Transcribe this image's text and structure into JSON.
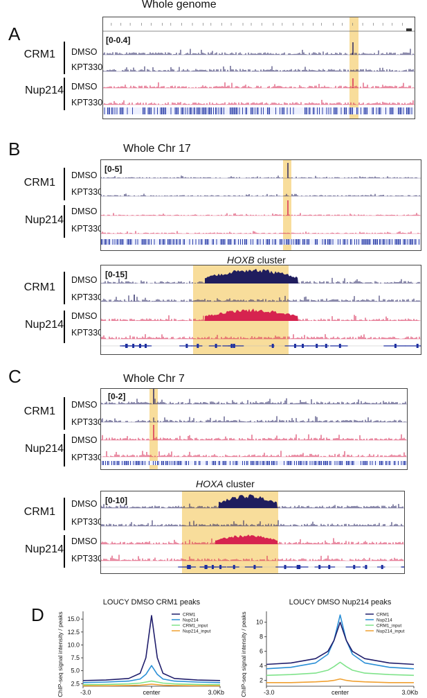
{
  "panels": {
    "A": {
      "letter": "A",
      "title": "Whole genome",
      "scale": "[0-0.4]",
      "group1": "CRM1",
      "group2": "Nup214",
      "dmso": "DMSO",
      "kpt": "KPT330"
    },
    "B": {
      "letter": "B",
      "title": "Whole  Chr 17",
      "scale": "[0-5]",
      "group1": "CRM1",
      "group2": "Nup214",
      "dmso": "DMSO",
      "kpt": "KPT330",
      "zoom_title_italic": "HOXB",
      "zoom_title_rest": " cluster",
      "zoom_scale": "[0-15]"
    },
    "C": {
      "letter": "C",
      "title": "Whole  Chr 7",
      "scale": "[0-2]",
      "group1": "CRM1",
      "group2": "Nup214",
      "dmso": "DMSO",
      "kpt": "KPT330",
      "zoom_title_italic": "HOXA",
      "zoom_title_rest": " cluster",
      "zoom_scale": "[0-10]"
    },
    "D": {
      "letter": "D"
    }
  },
  "colors": {
    "crm1_track": "#1f1d5e",
    "nup214_track": "#d6234f",
    "highlight": "#f7d990",
    "crm1_line": "#1f1d6b",
    "nup214_line": "#2a8fd6",
    "crm1_input_line": "#7fe38a",
    "nup214_input_line": "#f0a030"
  },
  "chart_data": [
    {
      "type": "line",
      "title": "LOUCY DMSO CRM1 peaks",
      "ylabel": "ChIP-seq signal intensity / peaks",
      "xticks": [
        "-3.0",
        "center",
        "3.0Kb"
      ],
      "yticks": [
        2.5,
        5.0,
        7.5,
        10.0,
        12.5,
        15.0
      ],
      "ylim": [
        2,
        16.5
      ],
      "legend": "top-right",
      "x": [
        -3,
        -2,
        -1,
        -0.5,
        -0.25,
        0,
        0.25,
        0.5,
        1,
        2,
        3
      ],
      "series": [
        {
          "name": "CRM1",
          "values": [
            3.1,
            3.2,
            3.5,
            4.5,
            7.5,
            15.7,
            7.5,
            4.5,
            3.5,
            3.2,
            3.1
          ]
        },
        {
          "name": "Nup214",
          "values": [
            2.7,
            2.8,
            3.0,
            3.4,
            4.3,
            6.0,
            4.3,
            3.4,
            3.0,
            2.8,
            2.7
          ]
        },
        {
          "name": "CRM1_input",
          "values": [
            2.3,
            2.35,
            2.45,
            2.6,
            2.8,
            3.0,
            2.8,
            2.6,
            2.45,
            2.35,
            2.3
          ]
        },
        {
          "name": "Nup214_input",
          "values": [
            2.1,
            2.1,
            2.15,
            2.2,
            2.3,
            2.4,
            2.3,
            2.2,
            2.15,
            2.1,
            2.1
          ]
        }
      ]
    },
    {
      "type": "line",
      "title": "LOUCY DMSO Nup214 peaks",
      "ylabel": "ChIP-seq signal intensity / peaks",
      "xticks": [
        "-3.0",
        "center",
        "3.0Kb"
      ],
      "yticks": [
        2,
        4,
        6,
        8,
        10
      ],
      "ylim": [
        1.2,
        11.5
      ],
      "legend": "top-right",
      "x": [
        -3,
        -2,
        -1,
        -0.5,
        -0.25,
        0,
        0.25,
        0.5,
        1,
        2,
        3
      ],
      "series": [
        {
          "name": "CRM1",
          "values": [
            4.2,
            4.4,
            5.0,
            6.0,
            7.5,
            10.0,
            7.5,
            6.0,
            5.0,
            4.4,
            4.2
          ]
        },
        {
          "name": "Nup214",
          "values": [
            3.6,
            3.8,
            4.4,
            5.6,
            7.5,
            11.0,
            7.5,
            5.6,
            4.4,
            3.8,
            3.6
          ]
        },
        {
          "name": "CRM1_input",
          "values": [
            2.7,
            2.8,
            3.0,
            3.4,
            3.9,
            4.5,
            3.9,
            3.4,
            3.0,
            2.8,
            2.7
          ]
        },
        {
          "name": "Nup214_input",
          "values": [
            1.7,
            1.7,
            1.8,
            1.9,
            2.0,
            2.2,
            2.0,
            1.9,
            1.8,
            1.7,
            1.7
          ]
        }
      ]
    }
  ]
}
